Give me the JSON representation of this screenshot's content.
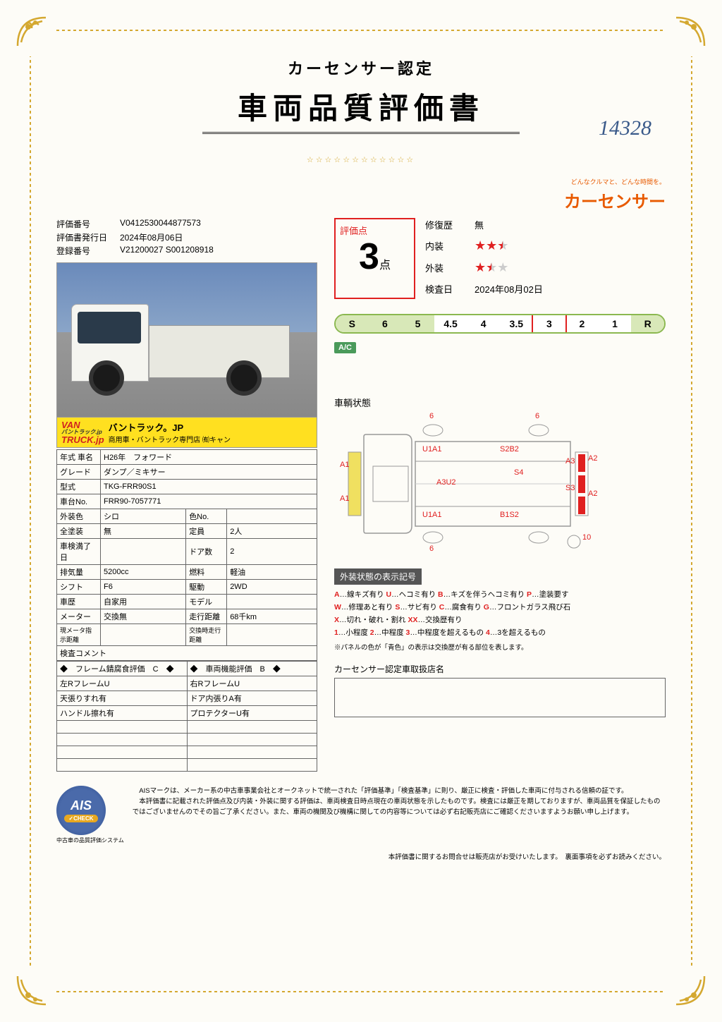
{
  "title": {
    "sub": "カーセンサー認定",
    "main": "車両品質評価書"
  },
  "handwritten": "14328",
  "brand": {
    "tagline": "どんなクルマと、どんな時間を。",
    "logo": "カーセンサー"
  },
  "meta": {
    "eval_no_label": "評価番号",
    "eval_no": "V0412530044877573",
    "issue_date_label": "評価書発行日",
    "issue_date": "2024年08月06日",
    "reg_no_label": "登録番号",
    "reg_no": "V21200027 S001208918"
  },
  "dealer": {
    "logo_top": "VAN",
    "logo_bottom": "TRUCK.jp",
    "logo_small": "バントラック.jp",
    "name": "バントラック。JP",
    "sub": "商用車・バントラック専門店",
    "badge": "㈲キャン"
  },
  "spec": {
    "year_label": "年式 車名",
    "year": "H26年　フォワード",
    "grade_label": "グレード",
    "grade": "ダンプ／ミキサー",
    "model_label": "型式",
    "model": "TKG-FRR90S1",
    "chassis_label": "車台No.",
    "chassis": "FRR90-7057771",
    "ext_color_label": "外装色",
    "ext_color": "シロ",
    "color_no_label": "色No.",
    "color_no": "",
    "paint_label": "全塗装",
    "paint": "無",
    "capacity_label": "定員",
    "capacity": "2人",
    "inspection_label": "車検満了日",
    "inspection": "",
    "doors_label": "ドア数",
    "doors": "2",
    "displacement_label": "排気量",
    "displacement": "5200cc",
    "fuel_label": "燃料",
    "fuel": "軽油",
    "shift_label": "シフト",
    "shift": "F6",
    "drive_label": "駆動",
    "drive": "2WD",
    "history_label": "車歴",
    "history": "自家用",
    "model2_label": "モデル",
    "model2": "",
    "meter_label": "メーター",
    "meter": "交換無",
    "mileage_label": "走行距離",
    "mileage": "68千km",
    "current_meter_label": "現メータ指示距離",
    "current_meter": "",
    "exchange_mileage_label": "交換時走行距離",
    "exchange_mileage": ""
  },
  "comment": {
    "header": "検査コメント",
    "frame_eval": "◆　フレーム錆腐食評価　C　◆",
    "function_eval": "◆　車両機能評価　B　◆",
    "r1c1": "左RフレームU",
    "r1c2": "右RフレームU",
    "r2c1": "天張りすれ有",
    "r2c2": "ドア内張りA有",
    "r3c1": "ハンドル擦れ有",
    "r3c2": "プロテクターU有"
  },
  "score": {
    "label": "評価点",
    "value": "3",
    "unit": "点",
    "repair_label": "修復歴",
    "repair": "無",
    "interior_label": "内装",
    "interior_stars": 2.5,
    "exterior_label": "外装",
    "exterior_stars": 1.5,
    "inspect_date_label": "検査日",
    "inspect_date": "2024年08月02日"
  },
  "grade_scale": [
    "S",
    "6",
    "5",
    "4.5",
    "4",
    "3.5",
    "3",
    "2",
    "1",
    "R"
  ],
  "grade_selected": "3",
  "ac_badge": "A/C",
  "diagram": {
    "title": "車輌状態",
    "marks": {
      "top1": "6",
      "top2": "6",
      "u1a1_t": "U1A1",
      "s2b2": "S2B2",
      "a1_l1": "A1",
      "a1_l2": "A1",
      "a3u2": "A3U2",
      "s4": "S4",
      "a3_r": "A3",
      "a2_r1": "A2",
      "s3_r": "S3",
      "a2_r2": "A2",
      "u1a1_b": "U1A1",
      "b1s2": "B1S2",
      "bot1": "6",
      "bot2": "10"
    }
  },
  "legend": {
    "title": "外装状態の表示記号",
    "lines": [
      [
        [
          "A",
          "…線キズ有り"
        ],
        [
          "U",
          "…ヘコミ有り"
        ],
        [
          "B",
          "…キズを伴うヘコミ有り"
        ],
        [
          "P",
          "…塗装要す"
        ]
      ],
      [
        [
          "W",
          "…修理あと有り"
        ],
        [
          "S",
          "…サビ有り"
        ],
        [
          "C",
          "…腐食有り"
        ],
        [
          "G",
          "…フロントガラス飛び石"
        ]
      ],
      [
        [
          "X",
          "…切れ・破れ・割れ"
        ],
        [
          "XX",
          "…交換歴有り"
        ]
      ],
      [
        [
          "1",
          "…小程度"
        ],
        [
          "2",
          "…中程度"
        ],
        [
          "3",
          "…中程度を超えるもの"
        ],
        [
          "4",
          "…3を超えるもの"
        ]
      ]
    ],
    "note": "※パネルの色が「青色」の表示は交換歴が有る部位を表します。"
  },
  "dealer_section": {
    "title": "カーセンサー認定車取扱店名"
  },
  "ais": {
    "badge": "AIS",
    "check": "✓CHECK",
    "caption": "中古車の品質評価システム",
    "text": "　AISマークは、メーカー系の中古車事業会社とオークネットで統一された「評価基準」「検査基準」に則り、厳正に検査・評価した車両に付与される信頼の証です。\n　本評価書に記載された評価点及び内装・外装に関する評価は、車両検査日時点現在の車両状態を示したものです。検査には厳正を期しておりますが、車両品質を保証したものではございませんのでその旨ご了承ください。また、車両の機関及び機構に関しての内容等については必ず右記販売店にご確認くださいますようお願い申し上げます。"
  },
  "footer": "本評価書に関するお問合せは販売店がお受けいたします。　裏面事項を必ずお読みください。"
}
